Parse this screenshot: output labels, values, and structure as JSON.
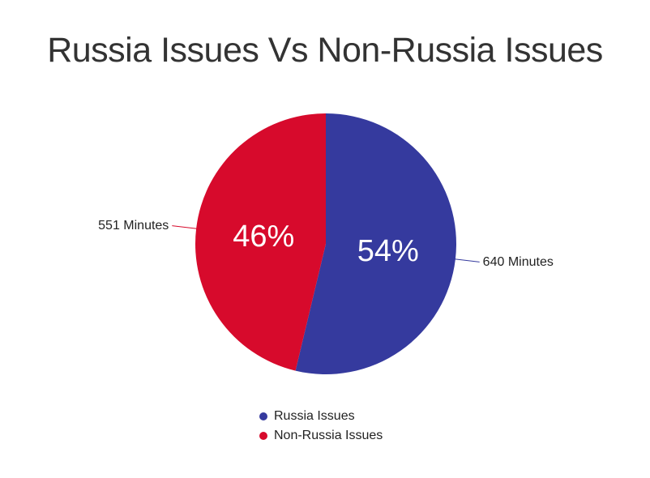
{
  "chart_data": {
    "type": "pie",
    "title": "Russia Issues Vs Non-Russia Issues",
    "slices": [
      {
        "label": "Russia Issues",
        "value": 640,
        "percent_label": "54%",
        "data_label": "640 Minutes",
        "color": "#353a9e"
      },
      {
        "label": "Non-Russia Issues",
        "value": 551,
        "percent_label": "46%",
        "data_label": "551 Minutes",
        "color": "#d70a2c"
      }
    ],
    "legend_position": "bottom"
  }
}
